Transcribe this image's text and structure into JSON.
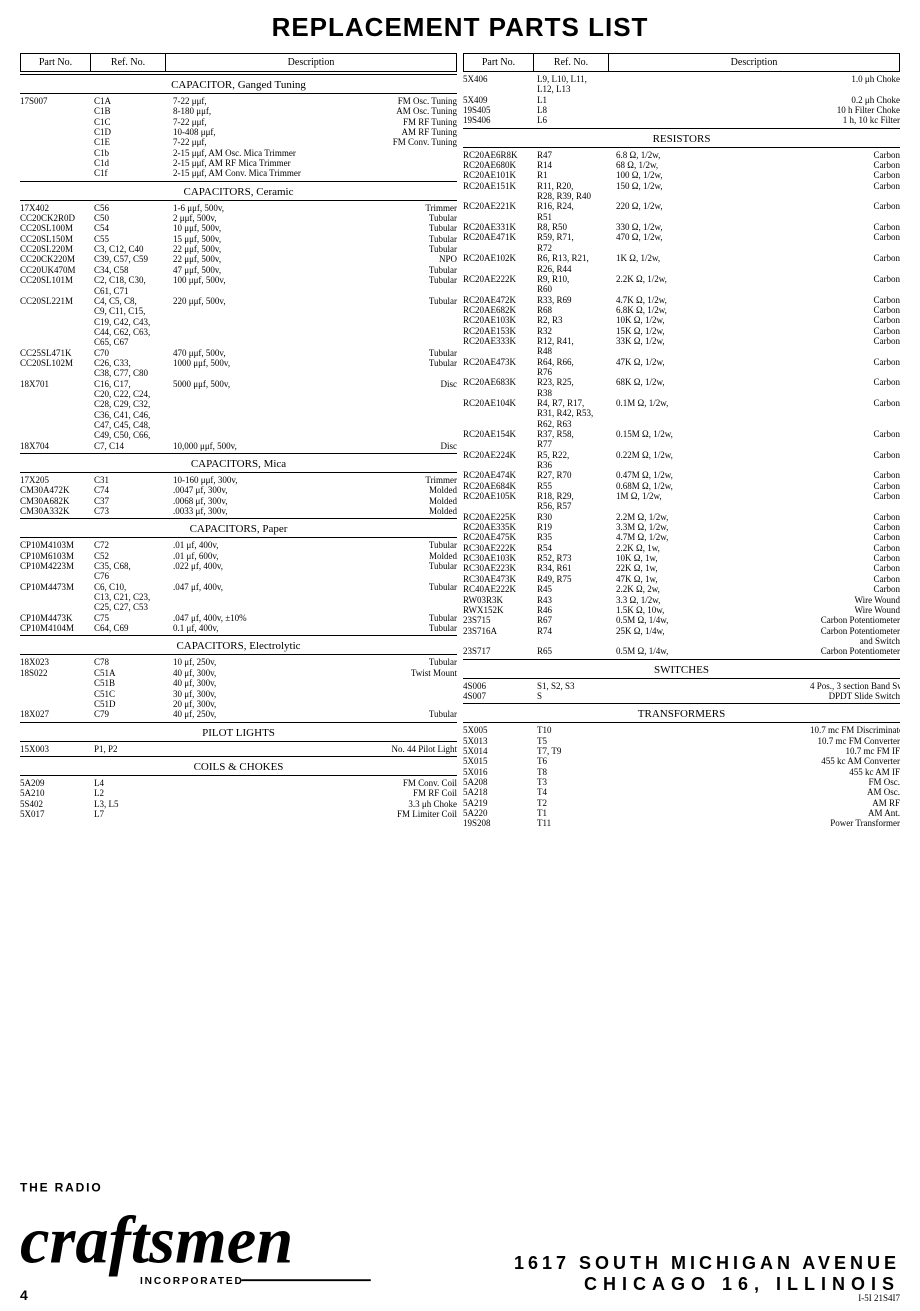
{
  "title": "REPLACEMENT PARTS LIST",
  "columns": {
    "h1": "Part No.",
    "h2": "Ref. No.",
    "h3": "Description"
  },
  "address": {
    "line1": "1617 SOUTH MICHIGAN AVENUE",
    "line2": "CHICAGO 16, ILLINOIS"
  },
  "page_number": "4",
  "page_code": "I-5I  21S4I7",
  "brand_pre": "THE RADIO",
  "brand_word": "craftsmen",
  "brand_sub": "INCORPORATED",
  "sections_left": [
    {
      "heading": "CAPACITOR, Ganged Tuning",
      "rows": [
        [
          "17S007",
          "C1A",
          "7-22 μμf,",
          "FM Osc. Tuning"
        ],
        [
          "",
          "C1B",
          "8-180 μμf,",
          "AM Osc. Tuning"
        ],
        [
          "",
          "C1C",
          "7-22 μμf,",
          "FM RF Tuning"
        ],
        [
          "",
          "C1D",
          "10-408 μμf,",
          "AM RF Tuning"
        ],
        [
          "",
          "C1E",
          "7-22 μμf,",
          "FM Conv. Tuning"
        ],
        [
          "",
          "C1b",
          "2-15 μμf, AM Osc. Mica Trimmer",
          ""
        ],
        [
          "",
          "C1d",
          "2-15 μμf,   AM RF Mica Trimmer",
          ""
        ],
        [
          "",
          "C1f",
          "2-15 μμf, AM Conv. Mica Trimmer",
          ""
        ]
      ]
    },
    {
      "heading": "CAPACITORS, Ceramic",
      "rows": [
        [
          "17X402",
          "C56",
          "1-6 μμf, 500v,",
          "Trimmer"
        ],
        [
          "CC20CK2R0D",
          "C50",
          "2 μμf, 500v,",
          "Tubular"
        ],
        [
          "CC20SL100M",
          "C54",
          "10 μμf, 500v,",
          "Tubular"
        ],
        [
          "CC20SL150M",
          "C55",
          "15 μμf, 500v,",
          "Tubular"
        ],
        [
          "CC20SL220M",
          "C3, C12, C40",
          "22 μμf, 500v,",
          "Tubular"
        ],
        [
          "CC20CK220M",
          "C39, C57, C59",
          "22 μμf, 500v,",
          "NPO"
        ],
        [
          "CC20UK470M",
          "C34, C58",
          "47 μμf, 500v,",
          "Tubular"
        ],
        [
          "CC20SL101M",
          "C2, C18, C30,",
          "100 μμf, 500v,",
          "Tubular"
        ],
        [
          "",
          "C61, C71",
          "",
          ""
        ],
        [
          "CC20SL221M",
          "C4, C5, C8,",
          "220 μμf, 500v,",
          "Tubular"
        ],
        [
          "",
          "C9, C11, C15,",
          "",
          ""
        ],
        [
          "",
          "C19, C42, C43,",
          "",
          ""
        ],
        [
          "",
          "C44, C62, C63,",
          "",
          ""
        ],
        [
          "",
          "C65, C67",
          "",
          ""
        ],
        [
          "CC25SL471K",
          "C70",
          "470 μμf, 500v,",
          "Tubular"
        ],
        [
          "CC20SL102M",
          "C26, C33,",
          "1000 μμf, 500v,",
          "Tubular"
        ],
        [
          "",
          "C38, C77, C80",
          "",
          ""
        ],
        [
          "18X701",
          "C16, C17,",
          "5000 μμf, 500v,",
          "Disc"
        ],
        [
          "",
          "C20, C22, C24,",
          "",
          ""
        ],
        [
          "",
          "C28, C29, C32,",
          "",
          ""
        ],
        [
          "",
          "C36, C41, C46,",
          "",
          ""
        ],
        [
          "",
          "C47, C45, C48,",
          "",
          ""
        ],
        [
          "",
          "C49, C50, C66,",
          "",
          ""
        ],
        [
          "18X704",
          "C7, C14",
          "10,000 μμf, 500v,",
          "Disc"
        ]
      ]
    },
    {
      "heading": "CAPACITORS, Mica",
      "rows": [
        [
          "17X205",
          "C31",
          "10-160 μμf, 300v,",
          "Trimmer"
        ],
        [
          "CM30A472K",
          "C74",
          ".0047  μf, 300v,",
          "Molded"
        ],
        [
          "CM30A682K",
          "C37",
          ".0068  μf, 300v,",
          "Molded"
        ],
        [
          "CM30A332K",
          "C73",
          ".0033  μf, 300v,",
          "Molded"
        ]
      ]
    },
    {
      "heading": "CAPACITORS, Paper",
      "rows": [
        [
          "CP10M4103M",
          "C72",
          ".01 μf, 400v,",
          "Tubular"
        ],
        [
          "CP10M6103M",
          "C52",
          ".01 μf, 600v,",
          "Molded"
        ],
        [
          "CP10M4223M",
          "C35, C68,",
          ".022 μf, 400v,",
          "Tubular"
        ],
        [
          "",
          "C76",
          "",
          ""
        ],
        [
          "CP10M4473M",
          "C6, C10,",
          ".047 μf, 400v,",
          "Tubular"
        ],
        [
          "",
          "C13, C21, C23,",
          "",
          ""
        ],
        [
          "",
          "C25, C27, C53",
          "",
          ""
        ],
        [
          "CP10M4473K",
          "C75",
          ".047 μf, 400v, ±10%",
          "Tubular"
        ],
        [
          "CP10M4104M",
          "C64, C69",
          "0.1 μf, 400v,",
          "Tubular"
        ]
      ]
    },
    {
      "heading": "CAPACITORS, Electrolytic",
      "rows": [
        [
          "18X023",
          "C78",
          "10 μf, 250v,",
          "Tubular"
        ],
        [
          "18S022",
          "C51A",
          "40 μf, 300v,",
          "Twist Mount"
        ],
        [
          "",
          "C51B",
          "40 μf, 300v,",
          ""
        ],
        [
          "",
          "C51C",
          "30 μf, 300v,",
          ""
        ],
        [
          "",
          "C51D",
          "20 μf, 300v,",
          ""
        ],
        [
          "18X027",
          "C79",
          "40 μf, 250v,",
          "Tubular"
        ]
      ]
    },
    {
      "heading": "PILOT LIGHTS",
      "rows": [
        [
          "15X003",
          "P1, P2",
          "",
          "No. 44 Pilot Light"
        ]
      ]
    },
    {
      "heading": "COILS & CHOKES",
      "rows": [
        [
          "5A209",
          "L4",
          "",
          "FM Conv. Coil"
        ],
        [
          "5A210",
          "L2",
          "",
          "FM RF Coil"
        ],
        [
          "5S402",
          "L3, L5",
          "",
          "3.3 μh Choke"
        ],
        [
          "5X017",
          "L7",
          "",
          "FM Limiter Coil"
        ]
      ]
    }
  ],
  "sections_right_top_rows": [
    [
      "5X406",
      "L9, L10, L11,",
      "",
      "1.0 μh Choke"
    ],
    [
      "",
      "L12, L13",
      "",
      ""
    ],
    [
      "5X409",
      "L1",
      "",
      "0.2 μh Choke"
    ],
    [
      "19S405",
      "L8",
      "",
      "10 h Filter Choke"
    ],
    [
      "19S406",
      "L6",
      "",
      "1 h, 10 kc Filter"
    ]
  ],
  "sections_right": [
    {
      "heading": "RESISTORS",
      "rows": [
        [
          "RC20AE6R8K",
          "R47",
          "6.8 Ω, 1/2w,",
          "Carbon"
        ],
        [
          "RC20AE680K",
          "R14",
          "68 Ω, 1/2w,",
          "Carbon"
        ],
        [
          "RC20AE101K",
          "R1",
          "100 Ω, 1/2w,",
          "Carbon"
        ],
        [
          "RC20AE151K",
          "R11, R20,",
          "150 Ω, 1/2w,",
          "Carbon"
        ],
        [
          "",
          "R28, R39, R40",
          "",
          ""
        ],
        [
          "RC20AE221K",
          "R16, R24,",
          "220 Ω, 1/2w,",
          "Carbon"
        ],
        [
          "",
          "R51",
          "",
          ""
        ],
        [
          "RC20AE331K",
          "R8, R50",
          "330 Ω, 1/2w,",
          "Carbon"
        ],
        [
          "RC20AE471K",
          "R59, R71,",
          "470 Ω, 1/2w,",
          "Carbon"
        ],
        [
          "",
          "R72",
          "",
          ""
        ],
        [
          "RC20AE102K",
          "R6, R13, R21,",
          "1K Ω, 1/2w,",
          "Carbon"
        ],
        [
          "",
          "R26, R44",
          "",
          ""
        ],
        [
          "RC20AE222K",
          "R9, R10,",
          "2.2K Ω, 1/2w,",
          "Carbon"
        ],
        [
          "",
          "R60",
          "",
          ""
        ],
        [
          "RC20AE472K",
          "R33, R69",
          "4.7K Ω, 1/2w,",
          "Carbon"
        ],
        [
          "RC20AE682K",
          "R68",
          "6.8K Ω, 1/2w,",
          "Carbon"
        ],
        [
          "RC20AE103K",
          "R2, R3",
          "10K Ω, 1/2w,",
          "Carbon"
        ],
        [
          "RC20AE153K",
          "R32",
          "15K Ω, 1/2w,",
          "Carbon"
        ],
        [
          "RC20AE333K",
          "R12, R41,",
          "33K Ω, 1/2w,",
          "Carbon"
        ],
        [
          "",
          "R48",
          "",
          ""
        ],
        [
          "RC20AE473K",
          "R64, R66,",
          "47K Ω, 1/2w,",
          "Carbon"
        ],
        [
          "",
          "R76",
          "",
          ""
        ],
        [
          "RC20AE683K",
          "R23, R25,",
          "68K Ω, 1/2w,",
          "Carbon"
        ],
        [
          "",
          "R38",
          "",
          ""
        ],
        [
          "RC20AE104K",
          "R4, R7, R17,",
          "0.1M Ω, 1/2w,",
          "Carbon"
        ],
        [
          "",
          "R31, R42, R53,",
          "",
          ""
        ],
        [
          "",
          "R62, R63",
          "",
          ""
        ],
        [
          "RC20AE154K",
          "R37, R58,",
          "0.15M Ω, 1/2w,",
          "Carbon"
        ],
        [
          "",
          "R77",
          "",
          ""
        ],
        [
          "RC20AE224K",
          "R5, R22,",
          "0.22M Ω, 1/2w,",
          "Carbon"
        ],
        [
          "",
          "R36",
          "",
          ""
        ],
        [
          "RC20AE474K",
          "R27, R70",
          "0.47M Ω, 1/2w,",
          "Carbon"
        ],
        [
          "RC20AE684K",
          "R55",
          "0.68M Ω, 1/2w,",
          "Carbon"
        ],
        [
          "RC20AE105K",
          "R18, R29,",
          "1M Ω, 1/2w,",
          "Carbon"
        ],
        [
          "",
          "R56, R57",
          "",
          ""
        ],
        [
          "RC20AE225K",
          "R30",
          "2.2M Ω, 1/2w,",
          "Carbon"
        ],
        [
          "RC20AE335K",
          "R19",
          "3.3M Ω, 1/2w,",
          "Carbon"
        ],
        [
          "RC20AE475K",
          "R35",
          "4.7M Ω, 1/2w,",
          "Carbon"
        ],
        [
          "RC30AE222K",
          "R54",
          "2.2K Ω,   1w,",
          "Carbon"
        ],
        [
          "RC30AE103K",
          "R52, R73",
          "10K Ω,   1w,",
          "Carbon"
        ],
        [
          "RC30AE223K",
          "R34, R61",
          "22K Ω,   1w,",
          "Carbon"
        ],
        [
          "RC30AE473K",
          "R49, R75",
          "47K Ω,   1w,",
          "Carbon"
        ],
        [
          "RC40AE222K",
          "R45",
          "2.2K Ω,   2w,",
          "Carbon"
        ],
        [
          "RW03R3K",
          "R43",
          "3.3 Ω, 1/2w,",
          "Wire Wound"
        ],
        [
          "RWX152K",
          "R46",
          "1.5K Ω,  10w,",
          "Wire Wound"
        ],
        [
          "23S715",
          "R67",
          "0.5M Ω, 1/4w,",
          "Carbon Potentiometer"
        ],
        [
          "23S716A",
          "R74",
          "25K Ω, 1/4w,",
          "Carbon Potentiometer"
        ],
        [
          "",
          "",
          "",
          "and Switch"
        ],
        [
          "23S717",
          "R65",
          "0.5M Ω, 1/4w,",
          "Carbon Potentiometer"
        ]
      ]
    },
    {
      "heading": "SWITCHES",
      "rows": [
        [
          "4S006",
          "S1, S2, S3",
          "",
          "4 Pos., 3 section Band Switch"
        ],
        [
          "4S007",
          "S",
          "",
          "DPDT Slide Switch"
        ]
      ]
    },
    {
      "heading": "TRANSFORMERS",
      "rows": [
        [
          "5X005",
          "T10",
          "",
          "10.7 mc FM Discriminator"
        ],
        [
          "5X013",
          "T5",
          "",
          "10.7 mc FM Converter"
        ],
        [
          "5X014",
          "T7, T9",
          "",
          "10.7 mc FM IF"
        ],
        [
          "5X015",
          "T6",
          "",
          "455 kc AM Converter"
        ],
        [
          "5X016",
          "T8",
          "",
          "455 kc AM IF"
        ],
        [
          "5A208",
          "T3",
          "",
          "FM Osc."
        ],
        [
          "5A218",
          "T4",
          "",
          "AM Osc."
        ],
        [
          "5A219",
          "T2",
          "",
          "AM RF"
        ],
        [
          "5A220",
          "T1",
          "",
          "AM Ant."
        ],
        [
          "19S208",
          "T11",
          "",
          "Power Transformer"
        ]
      ]
    }
  ]
}
